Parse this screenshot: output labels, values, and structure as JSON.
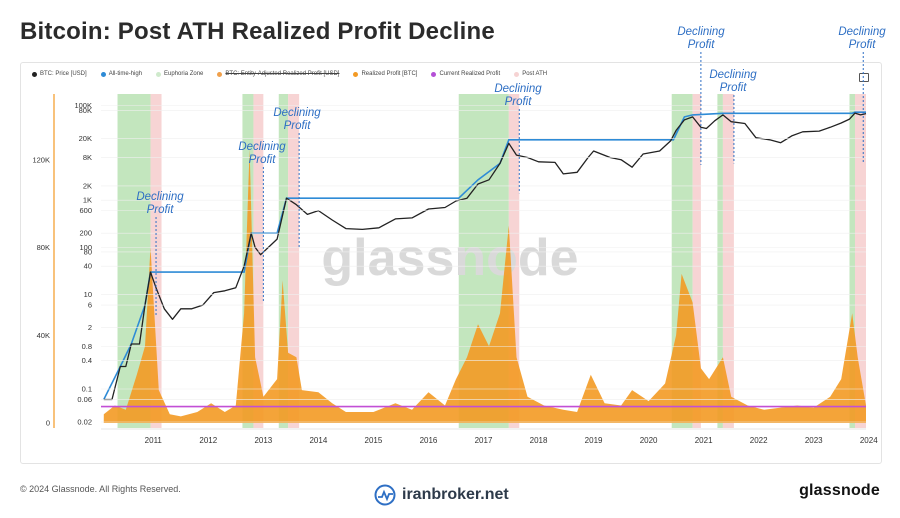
{
  "title": "Bitcoin: Post ATH Realized Profit Decline",
  "legend": [
    {
      "label": "BTC: Price [USD]",
      "color": "#222222",
      "struck": false
    },
    {
      "label": "All-time-high",
      "color": "#2e8bd6",
      "struck": false
    },
    {
      "label": "Euphoria Zone",
      "color": "#cfeacc",
      "struck": false
    },
    {
      "label": "BTC: Entity-Adjusted Realized Profit [USD]",
      "color": "#f0a04b",
      "struck": true
    },
    {
      "label": "Realized Profit [BTC]",
      "color": "#f39a24",
      "struck": false
    },
    {
      "label": "Current Realized Profit",
      "color": "#b44fd6",
      "struck": false
    },
    {
      "label": "Post ATH",
      "color": "#f6d3d3",
      "struck": false
    }
  ],
  "annotation_text": [
    "Declining",
    "Profit"
  ],
  "watermark": "glassnode",
  "footer": {
    "copyright": "© 2024 Glassnode. All Rights Reserved.",
    "brand": "iranbroker.net",
    "logo": "glassnode"
  },
  "colors": {
    "price": "#222222",
    "ath": "#2e8bd6",
    "euphoria": "#b9e2b3",
    "post_ath": "#f6cfcf",
    "realized_profit": "#f39a24",
    "current_profit": "#c24fd6",
    "annotation": "#2e6fc4"
  },
  "chart_data": {
    "type": "line",
    "title": "Bitcoin: Post ATH Realized Profit Decline",
    "x_ticks": [
      "2011",
      "2012",
      "2013",
      "2014",
      "2015",
      "2016",
      "2017",
      "2018",
      "2019",
      "2020",
      "2021",
      "2022",
      "2023",
      "2024"
    ],
    "y_price_scale": "log",
    "y_price_ticks": [
      "100K",
      "80K",
      "20K",
      "8K",
      "2K",
      "1K",
      "600",
      "200",
      "100",
      "80",
      "40",
      "10",
      "6",
      "2",
      "0.8",
      "0.4",
      "0.1",
      "0.06",
      "0.02"
    ],
    "y_profit_ticks": [
      "120K",
      "80K",
      "40K",
      "0"
    ],
    "y_profit_range": [
      0,
      150000
    ],
    "x_range": [
      2010.55,
      2024.45
    ],
    "series": [
      {
        "name": "BTC: Price [USD]",
        "points": [
          [
            2010.6,
            0.06
          ],
          [
            2010.75,
            0.06
          ],
          [
            2010.9,
            0.3
          ],
          [
            2011.0,
            0.3
          ],
          [
            2011.1,
            0.9
          ],
          [
            2011.25,
            0.9
          ],
          [
            2011.35,
            6
          ],
          [
            2011.45,
            30
          ],
          [
            2011.55,
            14
          ],
          [
            2011.7,
            5
          ],
          [
            2011.85,
            3
          ],
          [
            2012.0,
            5
          ],
          [
            2012.2,
            5
          ],
          [
            2012.4,
            6
          ],
          [
            2012.6,
            11
          ],
          [
            2012.8,
            12
          ],
          [
            2013.0,
            14
          ],
          [
            2013.15,
            40
          ],
          [
            2013.28,
            200
          ],
          [
            2013.35,
            100
          ],
          [
            2013.45,
            70
          ],
          [
            2013.55,
            90
          ],
          [
            2013.75,
            150
          ],
          [
            2013.92,
            1100
          ],
          [
            2014.1,
            800
          ],
          [
            2014.3,
            500
          ],
          [
            2014.5,
            600
          ],
          [
            2014.75,
            380
          ],
          [
            2015.0,
            250
          ],
          [
            2015.3,
            240
          ],
          [
            2015.6,
            260
          ],
          [
            2015.9,
            400
          ],
          [
            2016.2,
            420
          ],
          [
            2016.5,
            650
          ],
          [
            2016.8,
            700
          ],
          [
            2017.0,
            960
          ],
          [
            2017.2,
            1100
          ],
          [
            2017.4,
            2200
          ],
          [
            2017.6,
            2700
          ],
          [
            2017.8,
            6000
          ],
          [
            2017.96,
            16000
          ],
          [
            2018.1,
            9000
          ],
          [
            2018.3,
            8000
          ],
          [
            2018.5,
            6500
          ],
          [
            2018.8,
            6300
          ],
          [
            2018.95,
            3600
          ],
          [
            2019.2,
            3900
          ],
          [
            2019.4,
            8000
          ],
          [
            2019.5,
            11000
          ],
          [
            2019.8,
            8000
          ],
          [
            2020.0,
            7200
          ],
          [
            2020.2,
            5000
          ],
          [
            2020.4,
            9500
          ],
          [
            2020.7,
            11000
          ],
          [
            2020.9,
            18000
          ],
          [
            2021.0,
            30000
          ],
          [
            2021.15,
            50000
          ],
          [
            2021.3,
            58000
          ],
          [
            2021.45,
            35000
          ],
          [
            2021.55,
            33000
          ],
          [
            2021.7,
            48000
          ],
          [
            2021.85,
            64000
          ],
          [
            2022.0,
            46000
          ],
          [
            2022.25,
            42000
          ],
          [
            2022.45,
            21000
          ],
          [
            2022.7,
            19000
          ],
          [
            2022.9,
            16500
          ],
          [
            2023.1,
            23000
          ],
          [
            2023.3,
            28000
          ],
          [
            2023.6,
            29000
          ],
          [
            2023.8,
            35000
          ],
          [
            2024.0,
            43000
          ],
          [
            2024.15,
            52000
          ],
          [
            2024.25,
            70000
          ],
          [
            2024.35,
            64000
          ],
          [
            2024.45,
            68000
          ]
        ]
      },
      {
        "name": "All-time-high",
        "points": [
          [
            2010.6,
            0.06
          ],
          [
            2010.9,
            0.3
          ],
          [
            2011.1,
            0.9
          ],
          [
            2011.35,
            6
          ],
          [
            2011.45,
            30
          ],
          [
            2013.15,
            30
          ],
          [
            2013.28,
            200
          ],
          [
            2013.75,
            200
          ],
          [
            2013.92,
            1100
          ],
          [
            2017.05,
            1100
          ],
          [
            2017.4,
            2700
          ],
          [
            2017.8,
            6000
          ],
          [
            2017.96,
            19000
          ],
          [
            2020.95,
            19000
          ],
          [
            2021.15,
            58000
          ],
          [
            2021.3,
            64000
          ],
          [
            2021.85,
            69000
          ],
          [
            2024.2,
            69000
          ],
          [
            2024.25,
            73000
          ],
          [
            2024.45,
            73000
          ]
        ]
      },
      {
        "name": "Realized Profit [BTC]",
        "points": [
          [
            2010.6,
            4000
          ],
          [
            2010.8,
            8000
          ],
          [
            2011.0,
            6000
          ],
          [
            2011.2,
            22000
          ],
          [
            2011.35,
            35000
          ],
          [
            2011.45,
            80000
          ],
          [
            2011.6,
            15000
          ],
          [
            2011.8,
            4000
          ],
          [
            2012.0,
            3000
          ],
          [
            2012.3,
            5000
          ],
          [
            2012.55,
            9000
          ],
          [
            2012.8,
            5000
          ],
          [
            2013.0,
            8000
          ],
          [
            2013.15,
            50000
          ],
          [
            2013.25,
            125000
          ],
          [
            2013.35,
            30000
          ],
          [
            2013.5,
            12000
          ],
          [
            2013.75,
            20000
          ],
          [
            2013.85,
            65000
          ],
          [
            2013.95,
            32000
          ],
          [
            2014.1,
            30000
          ],
          [
            2014.2,
            15000
          ],
          [
            2014.5,
            14000
          ],
          [
            2014.75,
            9000
          ],
          [
            2015.0,
            5000
          ],
          [
            2015.5,
            5000
          ],
          [
            2015.9,
            9000
          ],
          [
            2016.2,
            6000
          ],
          [
            2016.5,
            14000
          ],
          [
            2016.8,
            8000
          ],
          [
            2017.0,
            20000
          ],
          [
            2017.2,
            30000
          ],
          [
            2017.4,
            45000
          ],
          [
            2017.6,
            35000
          ],
          [
            2017.8,
            50000
          ],
          [
            2017.96,
            90000
          ],
          [
            2018.1,
            30000
          ],
          [
            2018.3,
            12000
          ],
          [
            2018.6,
            8000
          ],
          [
            2018.95,
            6000
          ],
          [
            2019.2,
            5000
          ],
          [
            2019.45,
            22000
          ],
          [
            2019.7,
            9000
          ],
          [
            2020.0,
            8000
          ],
          [
            2020.2,
            15000
          ],
          [
            2020.5,
            10000
          ],
          [
            2020.8,
            18000
          ],
          [
            2021.0,
            40000
          ],
          [
            2021.1,
            68000
          ],
          [
            2021.3,
            55000
          ],
          [
            2021.45,
            25000
          ],
          [
            2021.6,
            20000
          ],
          [
            2021.85,
            30000
          ],
          [
            2022.0,
            12000
          ],
          [
            2022.3,
            8000
          ],
          [
            2022.6,
            6000
          ],
          [
            2022.9,
            7000
          ],
          [
            2023.2,
            8000
          ],
          [
            2023.5,
            7000
          ],
          [
            2023.8,
            12000
          ],
          [
            2024.0,
            20000
          ],
          [
            2024.2,
            50000
          ],
          [
            2024.3,
            30000
          ],
          [
            2024.45,
            8000
          ]
        ]
      },
      {
        "name": "Current Realized Profit",
        "points": [
          [
            2010.55,
            7500
          ],
          [
            2024.45,
            7500
          ]
        ]
      }
    ],
    "euphoria_zones": [
      [
        2010.85,
        2011.45
      ],
      [
        2013.12,
        2013.32
      ],
      [
        2013.78,
        2013.95
      ],
      [
        2017.05,
        2017.96
      ],
      [
        2020.92,
        2021.3
      ],
      [
        2021.75,
        2021.85
      ],
      [
        2024.15,
        2024.25
      ]
    ],
    "post_ath_zones": [
      [
        2011.45,
        2011.65
      ],
      [
        2013.32,
        2013.5
      ],
      [
        2013.95,
        2014.15
      ],
      [
        2017.96,
        2018.15
      ],
      [
        2021.3,
        2021.45
      ],
      [
        2021.85,
        2022.05
      ],
      [
        2024.25,
        2024.45
      ]
    ],
    "annotations": [
      {
        "x": 2011.55,
        "y_label_price": 40
      },
      {
        "x": 2013.5,
        "y_label_price": 80
      },
      {
        "x": 2014.15,
        "y_label_price": 1100
      },
      {
        "x": 2018.15,
        "y_label_price": 16000
      },
      {
        "x": 2021.45,
        "y_label_price": 64000
      },
      {
        "x": 2022.05,
        "y_label_price": 69000
      },
      {
        "x": 2024.4,
        "y_label_price": 73000
      }
    ]
  }
}
